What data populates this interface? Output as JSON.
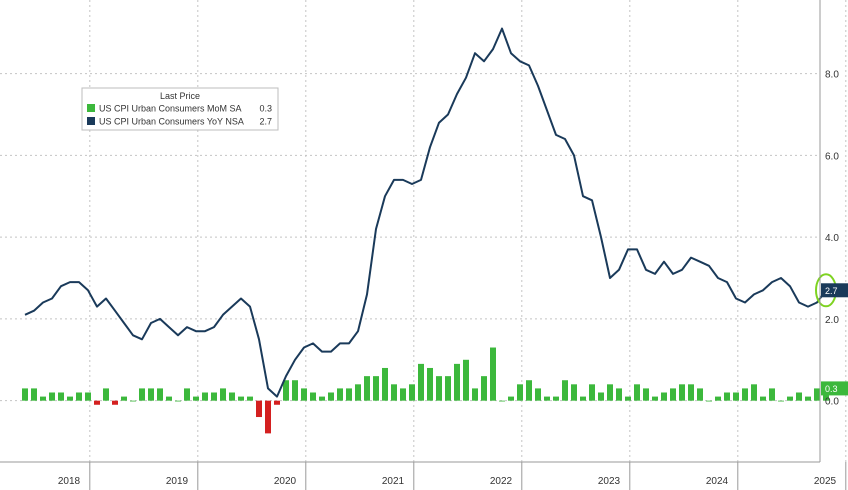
{
  "chart_data": {
    "type": "line",
    "title": "",
    "xlabel": "",
    "ylabel": "",
    "ylim": [
      -1.5,
      9.8
    ],
    "grid": true,
    "legend": {
      "position": "top-left",
      "title": "Last Price",
      "entries": [
        {
          "label": "US CPI Urban Consumers MoM SA",
          "value": "0.3",
          "color": "#3cb83c"
        },
        {
          "label": "US CPI Urban Consumers YoY NSA",
          "value": "2.7",
          "color": "#1a3a5a"
        }
      ]
    },
    "y_ticks": [
      "0.0",
      "2.0",
      "4.0",
      "6.0",
      "8.0"
    ],
    "year_labels": [
      "2018",
      "2019",
      "2020",
      "2021",
      "2022",
      "2023",
      "2024",
      "2025"
    ],
    "last_value_tags": [
      {
        "series": "US CPI Urban Consumers YoY NSA",
        "value": "2.7",
        "color": "#1a3a5a"
      },
      {
        "series": "US CPI Urban Consumers MoM SA",
        "value": "0.3",
        "color": "#3cb83c"
      }
    ],
    "x_start": "2018-01",
    "series": [
      {
        "name": "US CPI Urban Consumers YoY NSA",
        "kind": "line",
        "color": "#1a3a5a",
        "values": [
          2.1,
          2.2,
          2.4,
          2.5,
          2.8,
          2.9,
          2.9,
          2.7,
          2.3,
          2.5,
          2.2,
          1.9,
          1.6,
          1.5,
          1.9,
          2.0,
          1.8,
          1.6,
          1.8,
          1.7,
          1.7,
          1.8,
          2.1,
          2.3,
          2.5,
          2.3,
          1.5,
          0.3,
          0.1,
          0.6,
          1.0,
          1.3,
          1.4,
          1.2,
          1.2,
          1.4,
          1.4,
          1.7,
          2.6,
          4.2,
          5.0,
          5.4,
          5.4,
          5.3,
          5.4,
          6.2,
          6.8,
          7.0,
          7.5,
          7.9,
          8.5,
          8.3,
          8.6,
          9.1,
          8.5,
          8.3,
          8.2,
          7.7,
          7.1,
          6.5,
          6.4,
          6.0,
          5.0,
          4.9,
          4.0,
          3.0,
          3.2,
          3.7,
          3.7,
          3.2,
          3.1,
          3.4,
          3.1,
          3.2,
          3.5,
          3.4,
          3.3,
          3.0,
          2.9,
          2.5,
          2.4,
          2.6,
          2.7,
          2.9,
          3.0,
          2.8,
          2.4,
          2.3,
          2.4,
          2.7
        ]
      },
      {
        "name": "US CPI Urban Consumers MoM SA",
        "kind": "bar",
        "color": "#3cb83c",
        "negative_color": "#d42020",
        "values": [
          0.3,
          0.3,
          0.1,
          0.2,
          0.2,
          0.1,
          0.2,
          0.2,
          -0.1,
          0.3,
          -0.1,
          0.1,
          0.0,
          0.3,
          0.3,
          0.3,
          0.1,
          0.0,
          0.3,
          0.1,
          0.2,
          0.2,
          0.3,
          0.2,
          0.1,
          0.1,
          -0.4,
          -0.8,
          -0.1,
          0.5,
          0.5,
          0.3,
          0.2,
          0.1,
          0.2,
          0.3,
          0.3,
          0.4,
          0.6,
          0.6,
          0.8,
          0.4,
          0.3,
          0.4,
          0.9,
          0.8,
          0.6,
          0.6,
          0.9,
          1.0,
          0.3,
          0.6,
          1.3,
          0.0,
          0.1,
          0.4,
          0.5,
          0.3,
          0.1,
          0.1,
          0.5,
          0.4,
          0.1,
          0.4,
          0.2,
          0.4,
          0.3,
          0.1,
          0.4,
          0.3,
          0.1,
          0.2,
          0.3,
          0.4,
          0.4,
          0.3,
          0.0,
          0.1,
          0.2,
          0.2,
          0.3,
          0.4,
          0.1,
          0.3,
          0.0,
          0.1,
          0.2,
          0.1,
          0.3,
          0.3
        ]
      }
    ]
  }
}
